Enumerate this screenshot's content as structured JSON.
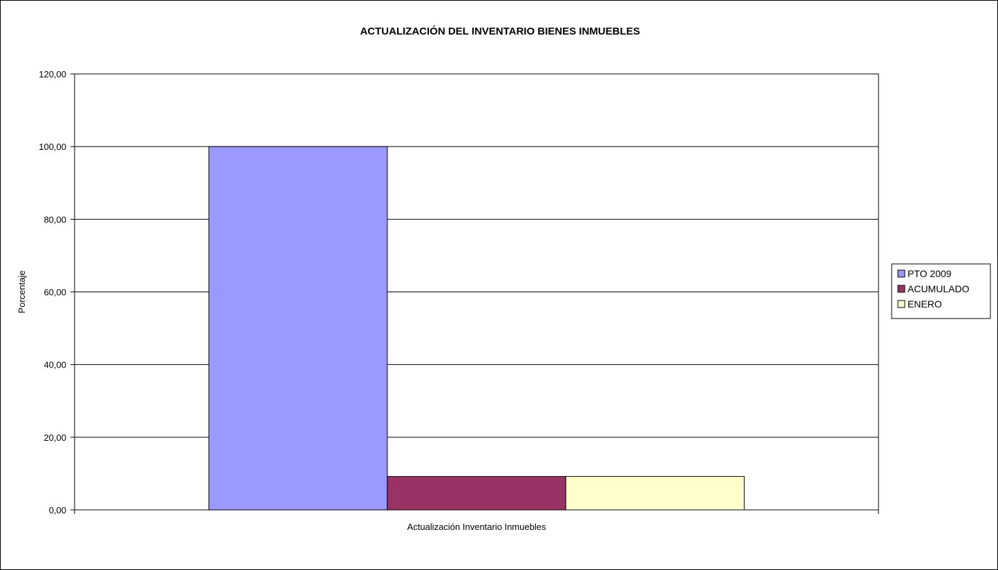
{
  "chart_data": {
    "type": "bar",
    "title": "ACTUALIZACIÓN DEL INVENTARIO BIENES INMUEBLES",
    "xlabel": "Actualización Inventario Inmuebles",
    "ylabel": "Porcentaje",
    "categories": [
      "Actualización Inventario Inmuebles"
    ],
    "series": [
      {
        "name": "PTO 2009",
        "values": [
          100.0
        ],
        "color": "#9999ff"
      },
      {
        "name": "ACUMULADO",
        "values": [
          9.2
        ],
        "color": "#993366"
      },
      {
        "name": "ENERO",
        "values": [
          9.2
        ],
        "color": "#ffffcc"
      }
    ],
    "ylim": [
      0,
      120
    ],
    "yticks": [
      0,
      20,
      40,
      60,
      80,
      100,
      120
    ],
    "ytick_labels": [
      "0,00",
      "20,00",
      "40,00",
      "60,00",
      "80,00",
      "100,00",
      "120,00"
    ],
    "grid": true,
    "legend": "right"
  }
}
